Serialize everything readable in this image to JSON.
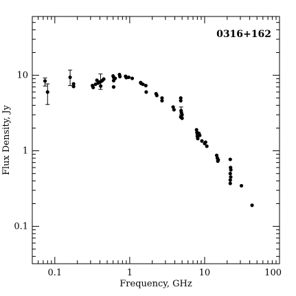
{
  "chart_data": {
    "type": "scatter",
    "title": "0316+162",
    "xlabel": "Frequency, GHz",
    "ylabel": "Flux Density, Jy",
    "xscale": "log",
    "yscale": "log",
    "xlim": [
      0.05,
      100
    ],
    "ylim": [
      0.032,
      60
    ],
    "legend": "none",
    "grid": false,
    "marker_color": "#000000",
    "x_ticks": [
      {
        "value": 0.1,
        "label": "0.1"
      },
      {
        "value": 1,
        "label": "1"
      },
      {
        "value": 10,
        "label": "10"
      },
      {
        "value": 100,
        "label": "100"
      }
    ],
    "y_ticks": [
      {
        "value": 0.1,
        "label": "0.1"
      },
      {
        "value": 1,
        "label": "1"
      },
      {
        "value": 10,
        "label": "10"
      }
    ],
    "series": [
      {
        "points": [
          {
            "x": 0.074,
            "y": 8.4,
            "yerr": [
              7.2,
              9.2
            ]
          },
          {
            "x": 0.08,
            "y": 6.0,
            "yerr": [
              4.1,
              7.7
            ]
          },
          {
            "x": 0.16,
            "y": 9.4,
            "yerr": [
              7.3,
              11.7
            ]
          },
          {
            "x": 0.178,
            "y": 7.7
          },
          {
            "x": 0.178,
            "y": 7.1
          },
          {
            "x": 0.318,
            "y": 7.3
          },
          {
            "x": 0.325,
            "y": 6.9
          },
          {
            "x": 0.35,
            "y": 7.6
          },
          {
            "x": 0.365,
            "y": 8.6
          },
          {
            "x": 0.38,
            "y": 7.9
          },
          {
            "x": 0.39,
            "y": 8.1
          },
          {
            "x": 0.408,
            "y": 8.2,
            "yerr": [
              6.5,
              10.4
            ]
          },
          {
            "x": 0.41,
            "y": 7.2
          },
          {
            "x": 0.43,
            "y": 8.5
          },
          {
            "x": 0.45,
            "y": 8.9
          },
          {
            "x": 0.6,
            "y": 9.8
          },
          {
            "x": 0.61,
            "y": 9.4
          },
          {
            "x": 0.61,
            "y": 8.5
          },
          {
            "x": 0.61,
            "y": 7.0
          },
          {
            "x": 0.64,
            "y": 9.1
          },
          {
            "x": 0.73,
            "y": 10.2
          },
          {
            "x": 0.74,
            "y": 9.6
          },
          {
            "x": 0.88,
            "y": 9.7
          },
          {
            "x": 0.9,
            "y": 9.3
          },
          {
            "x": 0.97,
            "y": 9.4
          },
          {
            "x": 1.08,
            "y": 9.1
          },
          {
            "x": 1.4,
            "y": 8.0
          },
          {
            "x": 1.42,
            "y": 7.8
          },
          {
            "x": 1.5,
            "y": 7.6
          },
          {
            "x": 1.64,
            "y": 7.3
          },
          {
            "x": 1.66,
            "y": 6.0
          },
          {
            "x": 2.25,
            "y": 5.7
          },
          {
            "x": 2.3,
            "y": 5.4
          },
          {
            "x": 2.7,
            "y": 5.0
          },
          {
            "x": 2.7,
            "y": 4.6
          },
          {
            "x": 3.8,
            "y": 3.8
          },
          {
            "x": 3.9,
            "y": 3.5
          },
          {
            "x": 4.8,
            "y": 5.0
          },
          {
            "x": 4.8,
            "y": 4.6
          },
          {
            "x": 4.85,
            "y": 3.4,
            "yerr": [
              3.0,
              3.8
            ]
          },
          {
            "x": 4.9,
            "y": 3.2
          },
          {
            "x": 5.0,
            "y": 3.0
          },
          {
            "x": 4.8,
            "y": 2.8
          },
          {
            "x": 5.0,
            "y": 2.7
          },
          {
            "x": 7.8,
            "y": 1.9
          },
          {
            "x": 7.9,
            "y": 1.75
          },
          {
            "x": 8.0,
            "y": 1.65
          },
          {
            "x": 8.0,
            "y": 1.55
          },
          {
            "x": 8.1,
            "y": 1.45
          },
          {
            "x": 8.4,
            "y": 1.7
          },
          {
            "x": 8.6,
            "y": 1.6
          },
          {
            "x": 9.2,
            "y": 1.35
          },
          {
            "x": 10.0,
            "y": 1.25
          },
          {
            "x": 10.3,
            "y": 1.3
          },
          {
            "x": 10.7,
            "y": 1.15
          },
          {
            "x": 14.5,
            "y": 0.87
          },
          {
            "x": 14.8,
            "y": 0.8
          },
          {
            "x": 15.0,
            "y": 0.73
          },
          {
            "x": 15.2,
            "y": 0.76
          },
          {
            "x": 22.0,
            "y": 0.77
          },
          {
            "x": 22.2,
            "y": 0.6
          },
          {
            "x": 22.4,
            "y": 0.56
          },
          {
            "x": 22.0,
            "y": 0.5
          },
          {
            "x": 22.3,
            "y": 0.45
          },
          {
            "x": 22.0,
            "y": 0.41
          },
          {
            "x": 22.0,
            "y": 0.37
          },
          {
            "x": 31.0,
            "y": 0.345
          },
          {
            "x": 43.0,
            "y": 0.19
          }
        ]
      }
    ]
  }
}
